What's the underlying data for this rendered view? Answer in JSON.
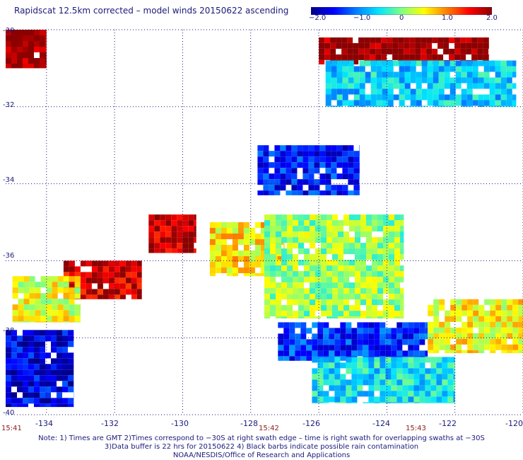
{
  "title": "Rapidscat 12.5km corrected – model winds 20150622 ascending",
  "colorbar": {
    "ticks": [
      "−2.0",
      "−1.0",
      "0",
      "1.0",
      "2.0"
    ],
    "colors": [
      "#00008b",
      "#0000ff",
      "#0080ff",
      "#00e5ff",
      "#80ff80",
      "#ffff00",
      "#ff8000",
      "#ff0000",
      "#8b0000"
    ]
  },
  "axes": {
    "y_ticks": [
      "-30",
      "-32",
      "-34",
      "-36",
      "-38",
      "-40"
    ],
    "x_ticks": [
      "-134",
      "-132",
      "-130",
      "-128",
      "-126",
      "-124",
      "-122",
      "-120"
    ]
  },
  "times": [
    "15:41",
    "15:42",
    "15:43"
  ],
  "notes": [
    "Note: 1) Times are GMT 2)Times correspond to −30S at right swath edge – time is right swath for overlapping swaths at −30S",
    "3)Data buffer is 22 hrs for 20150622 4) Black barbs indicate possible rain contamination",
    "NOAA/NESDIS/Office of Research and Applications"
  ],
  "chart_data": {
    "type": "heatmap",
    "title": "Rapidscat 12.5km corrected – model winds 20150622 ascending",
    "xlabel": "",
    "ylabel": "",
    "xlim": [
      -135.2,
      -120
    ],
    "ylim": [
      -40,
      -30
    ],
    "grid": true,
    "value_range": [
      -2.0,
      2.0
    ],
    "regions": [
      {
        "name": "",
        "lon": [
          -135.2,
          -134.0
        ],
        "lat": [
          -31.0,
          -30.0
        ],
        "value": 2.0
      },
      {
        "name": "",
        "lon": [
          -126.0,
          -121.0
        ],
        "lat": [
          -30.9,
          -30.2
        ],
        "value": 2.0
      },
      {
        "name": "",
        "lon": [
          -125.8,
          -120.2
        ],
        "lat": [
          -32.0,
          -30.8
        ],
        "value": -0.6
      },
      {
        "name": "",
        "lon": [
          -127.8,
          -124.8
        ],
        "lat": [
          -34.3,
          -33.0
        ],
        "value": -1.4
      },
      {
        "name": "",
        "lon": [
          -131.0,
          -129.6
        ],
        "lat": [
          -35.8,
          -34.8
        ],
        "value": 1.8
      },
      {
        "name": "",
        "lon": [
          -133.5,
          -131.2
        ],
        "lat": [
          -37.0,
          -36.0
        ],
        "value": 1.7
      },
      {
        "name": "",
        "lon": [
          -129.2,
          -127.0
        ],
        "lat": [
          -36.4,
          -35.0
        ],
        "value": 0.6
      },
      {
        "name": "",
        "lon": [
          -127.6,
          -123.5
        ],
        "lat": [
          -37.5,
          -34.8
        ],
        "value": 0.1
      },
      {
        "name": "",
        "lon": [
          -127.2,
          -122.8
        ],
        "lat": [
          -38.6,
          -37.6
        ],
        "value": -1.3
      },
      {
        "name": "",
        "lon": [
          -126.2,
          -122.0
        ],
        "lat": [
          -39.7,
          -38.5
        ],
        "value": -0.5
      },
      {
        "name": "",
        "lon": [
          -135.2,
          -133.2
        ],
        "lat": [
          -39.8,
          -37.8
        ],
        "value": -1.6
      },
      {
        "name": "",
        "lon": [
          -135.0,
          -133.0
        ],
        "lat": [
          -37.6,
          -36.4
        ],
        "value": 0.4
      },
      {
        "name": "",
        "lon": [
          -122.8,
          -120.0
        ],
        "lat": [
          -38.4,
          -37.0
        ],
        "value": 0.5
      }
    ]
  }
}
